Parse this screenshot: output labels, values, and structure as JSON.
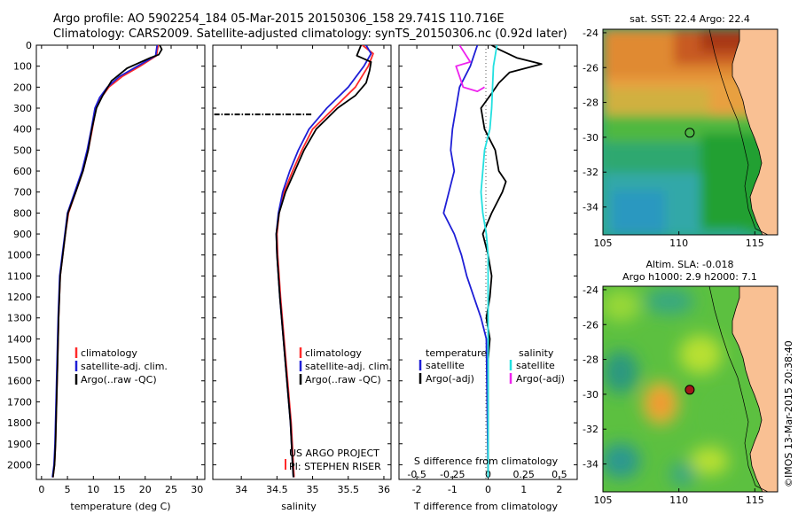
{
  "header": {
    "title_line1": "Argo profile: AO 5902254_184 05-Mar-2015 20150306_158 29.741S 110.716E",
    "title_line2": "Climatology: CARS2009. Satellite-adjusted climatology: synTS_20150306.nc (0.92d later)"
  },
  "colors": {
    "climatology": "#ff2a2a",
    "satellite": "#1f1fd6",
    "argo": "#000000",
    "sal_satellite": "#22e0e0",
    "sal_argo": "#ee22ee",
    "land": "#f9c093"
  },
  "depth_axis": {
    "range": [
      0,
      2070
    ],
    "ticks": [
      0,
      100,
      200,
      300,
      400,
      500,
      600,
      700,
      800,
      900,
      1000,
      1100,
      1200,
      1300,
      1400,
      1500,
      1600,
      1700,
      1800,
      1900,
      2000
    ]
  },
  "legend_profile": {
    "climatology": "climatology",
    "satellite": "satellite-adj. clim.",
    "argo": "Argo(..raw -QC)"
  },
  "legend_diff": {
    "temperature_head": "temperature",
    "salinity_head": "salinity",
    "t_satellite": "satellite",
    "t_argo": "Argo(-adj)",
    "s_satellite": "satellite",
    "s_argo": "Argo(-adj)"
  },
  "credits": {
    "project": "US ARGO PROJECT",
    "pi": "PI: STEPHEN RISER",
    "imos": "©IMOS 13-Mar-2015 20:38:40"
  },
  "chart_data": [
    {
      "type": "line",
      "panel": "temperature",
      "xlabel": "temperature (deg C)",
      "xlim": [
        -1,
        31.5
      ],
      "xticks": [
        0,
        5,
        10,
        15,
        20,
        25,
        30
      ],
      "series": [
        {
          "name": "climatology",
          "color": "#ff2a2a",
          "x": [
            22.5,
            22.2,
            19,
            15.5,
            13,
            11.5,
            10.5,
            9.8,
            9,
            8,
            6.6,
            5.2,
            4.6,
            4.1,
            3.6,
            3.3,
            3.1,
            2.9,
            2.7,
            2.5,
            2.3,
            2.2
          ],
          "y": [
            0,
            50,
            100,
            150,
            200,
            250,
            300,
            400,
            500,
            600,
            700,
            800,
            900,
            1000,
            1100,
            1300,
            1500,
            1700,
            1900,
            2000,
            2040,
            2060
          ]
        },
        {
          "name": "satellite-adj. clim.",
          "color": "#1f1fd6",
          "x": [
            22.3,
            22,
            18.5,
            15,
            12.7,
            11.2,
            10.3,
            9.6,
            8.8,
            7.8,
            6.4,
            5.0,
            4.5,
            4.0,
            3.5,
            3.2,
            3.0,
            2.8,
            2.6,
            2.4,
            2.2,
            2.1
          ],
          "y": [
            0,
            50,
            100,
            150,
            200,
            250,
            300,
            400,
            500,
            600,
            700,
            800,
            900,
            1000,
            1100,
            1300,
            1500,
            1700,
            1900,
            2000,
            2040,
            2060
          ]
        },
        {
          "name": "Argo(..raw -QC)",
          "color": "#000000",
          "x": [
            22.8,
            23.2,
            22.6,
            21,
            16.5,
            13.5,
            11.8,
            10.6,
            9.7,
            9,
            8,
            6.6,
            5.1,
            4.6,
            4.1,
            3.6,
            3.3,
            3.1,
            2.9,
            2.7,
            2.5,
            2.3,
            2.2
          ],
          "y": [
            0,
            20,
            45,
            60,
            110,
            170,
            240,
            300,
            400,
            500,
            600,
            700,
            800,
            900,
            1000,
            1100,
            1300,
            1500,
            1700,
            1900,
            2000,
            2040,
            2060
          ]
        }
      ]
    },
    {
      "type": "line",
      "panel": "salinity",
      "xlabel": "salinity",
      "xlim": [
        33.6,
        36.1
      ],
      "xticks": [
        34,
        34.5,
        35,
        35.5,
        36
      ],
      "tick_labels": [
        "34",
        "34.5",
        "35",
        "35.5",
        "36"
      ],
      "series": [
        {
          "name": "climatology",
          "color": "#ff2a2a",
          "x": [
            35.7,
            35.85,
            35.78,
            35.6,
            35.3,
            35.0,
            34.85,
            34.72,
            34.6,
            34.53,
            34.5,
            34.51,
            34.55,
            34.6,
            34.65,
            34.7,
            34.73,
            34.74
          ],
          "y": [
            0,
            40,
            100,
            200,
            300,
            400,
            500,
            600,
            700,
            800,
            900,
            1000,
            1200,
            1400,
            1600,
            1800,
            2000,
            2060
          ]
        },
        {
          "name": "satellite-adj. clim.",
          "color": "#1f1fd6",
          "x": [
            35.75,
            35.82,
            35.72,
            35.5,
            35.2,
            34.95,
            34.8,
            34.68,
            34.58,
            34.52,
            34.49,
            34.5,
            34.54,
            34.59,
            34.64,
            34.69,
            34.72,
            34.73
          ],
          "y": [
            0,
            40,
            100,
            200,
            300,
            400,
            500,
            600,
            700,
            800,
            900,
            1000,
            1200,
            1400,
            1600,
            1800,
            2000,
            2060
          ]
        },
        {
          "name": "Argo(..raw -QC)",
          "color": "#000000",
          "x": [
            35.68,
            35.62,
            35.82,
            35.8,
            35.75,
            35.6,
            35.35,
            35.05,
            34.88,
            34.75,
            34.62,
            34.53,
            34.49,
            34.5,
            34.54,
            34.59,
            34.64,
            34.69,
            34.72,
            34.73
          ],
          "y": [
            0,
            50,
            80,
            120,
            180,
            240,
            300,
            400,
            500,
            600,
            700,
            800,
            900,
            1000,
            1200,
            1400,
            1600,
            1800,
            2000,
            2060
          ]
        },
        {
          "name": "bad-data",
          "color": "#000000",
          "dash": true,
          "x": [
            33.62,
            35.0
          ],
          "y": [
            330,
            330
          ]
        }
      ]
    },
    {
      "type": "line",
      "panel": "difference",
      "xlabel": "T difference from climatology",
      "xlabel2": "S difference from climatology",
      "xlim": [
        -2.5,
        2.5
      ],
      "xticks": [
        -2,
        -1,
        0,
        1,
        2
      ],
      "top_tick_labels": [
        "-0.5",
        "-0.25",
        "0",
        "0.25",
        "0.5"
      ],
      "series": [
        {
          "name": "T satellite",
          "color": "#1f1fd6",
          "x": [
            -0.3,
            -0.5,
            -0.8,
            -0.9,
            -1.0,
            -1.05,
            -0.95,
            -1.1,
            -1.25,
            -0.95,
            -0.75,
            -0.6,
            -0.4,
            -0.2,
            -0.05,
            0
          ],
          "y": [
            0,
            100,
            200,
            300,
            400,
            500,
            600,
            700,
            800,
            900,
            1000,
            1100,
            1200,
            1300,
            1400,
            2060
          ]
        },
        {
          "name": "T Argo(-adj)",
          "color": "#000000",
          "x": [
            0.1,
            0.3,
            0.8,
            1.5,
            0.6,
            0.3,
            0.1,
            -0.2,
            -0.1,
            0.2,
            0.3,
            0.5,
            0.4,
            0.1,
            -0.15,
            0,
            0.1,
            0.05,
            -0.05,
            0.05,
            0,
            0,
            0
          ],
          "y": [
            0,
            20,
            60,
            90,
            130,
            180,
            230,
            300,
            400,
            500,
            600,
            650,
            700,
            800,
            900,
            1000,
            1100,
            1200,
            1300,
            1400,
            1500,
            2000,
            2060
          ]
        },
        {
          "name": "S satellite",
          "color": "#22e0e0",
          "x": [
            0.25,
            0.15,
            0.1,
            0.05,
            -0.1,
            -0.2,
            -0.15,
            -0.05,
            0,
            0,
            0
          ],
          "y": [
            0,
            100,
            300,
            400,
            500,
            700,
            800,
            900,
            1000,
            1500,
            2060
          ]
        },
        {
          "name": "S Argo(-adj)",
          "color": "#ee22ee",
          "x": [
            -0.8,
            -0.5,
            -0.9,
            -0.7,
            -0.3,
            -0.1
          ],
          "y": [
            0,
            80,
            100,
            200,
            220,
            200
          ]
        }
      ]
    },
    {
      "type": "heatmap",
      "panel": "sst_map",
      "title": "sat. SST: 22.4 Argo: 22.4",
      "xlim": [
        105,
        116.5
      ],
      "ylim": [
        -35.6,
        -23.8
      ],
      "xticks": [
        105,
        110,
        115
      ],
      "yticks": [
        -34,
        -32,
        -30,
        -28,
        -26,
        -24
      ],
      "profile_marker": {
        "lon": 110.716,
        "lat": -29.741,
        "filled": false
      }
    },
    {
      "type": "heatmap",
      "panel": "sla_map",
      "title": "Altim. SLA: -0.018",
      "subtitle": "Argo h1000: 2.9 h2000: 7.1",
      "xlim": [
        105,
        116.5
      ],
      "ylim": [
        -35.6,
        -23.8
      ],
      "xticks": [
        105,
        110,
        115
      ],
      "yticks": [
        -34,
        -32,
        -30,
        -28,
        -26,
        -24
      ],
      "profile_marker": {
        "lon": 110.716,
        "lat": -29.741,
        "filled": true
      }
    }
  ]
}
